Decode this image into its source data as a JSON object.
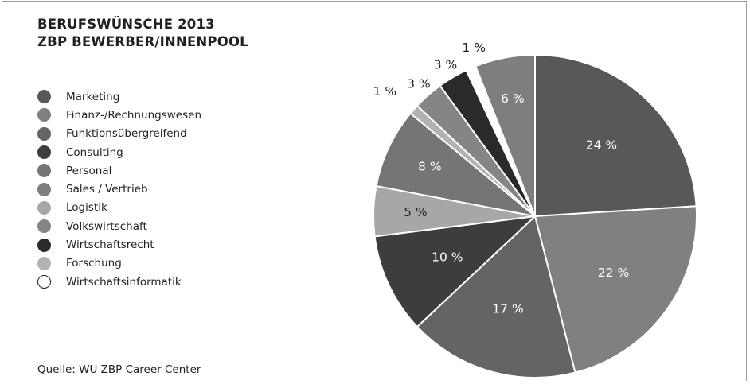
{
  "title": {
    "line1": "BERUFSWÜNSCHE 2013",
    "line2": "ZBP BEWERBER/INNENPOOL"
  },
  "source": "Quelle: WU ZBP Career Center",
  "chart_data": {
    "type": "pie",
    "title": "BERUFSWÜNSCHE 2013 ZBP BEWERBER/INNENPOOL",
    "legend_position": "left",
    "start_angle": "12 o'clock, clockwise",
    "unit": "%",
    "categories": [
      "Marketing",
      "Finanz-/Rechnungswesen",
      "Funktionsübergreifend",
      "Consulting",
      "Personal",
      "Sales / Vertrieb",
      "Logistik",
      "Volkswirtschaft",
      "Wirtschaftsrecht",
      "Forschung",
      "Wirtschaftsinformatik"
    ],
    "values": [
      24,
      22,
      17,
      10,
      8,
      6,
      5,
      3,
      3,
      1,
      1
    ],
    "labels": [
      "24 %",
      "22 %",
      "17 %",
      "10 %",
      "8 %",
      "6 %",
      "5 %",
      "3 %",
      "3 %",
      "1 %",
      "1 %"
    ],
    "slice_order": [
      0,
      1,
      2,
      3,
      6,
      4,
      9,
      7,
      8,
      10,
      5
    ],
    "colors": [
      "#58585a",
      "#807f81",
      "#646365",
      "#3d3d3f",
      "#757477",
      "#7e7d80",
      "#a7a6a8",
      "#858487",
      "#2a2a2c",
      "#b2b1b3",
      "#ffffff"
    ]
  }
}
